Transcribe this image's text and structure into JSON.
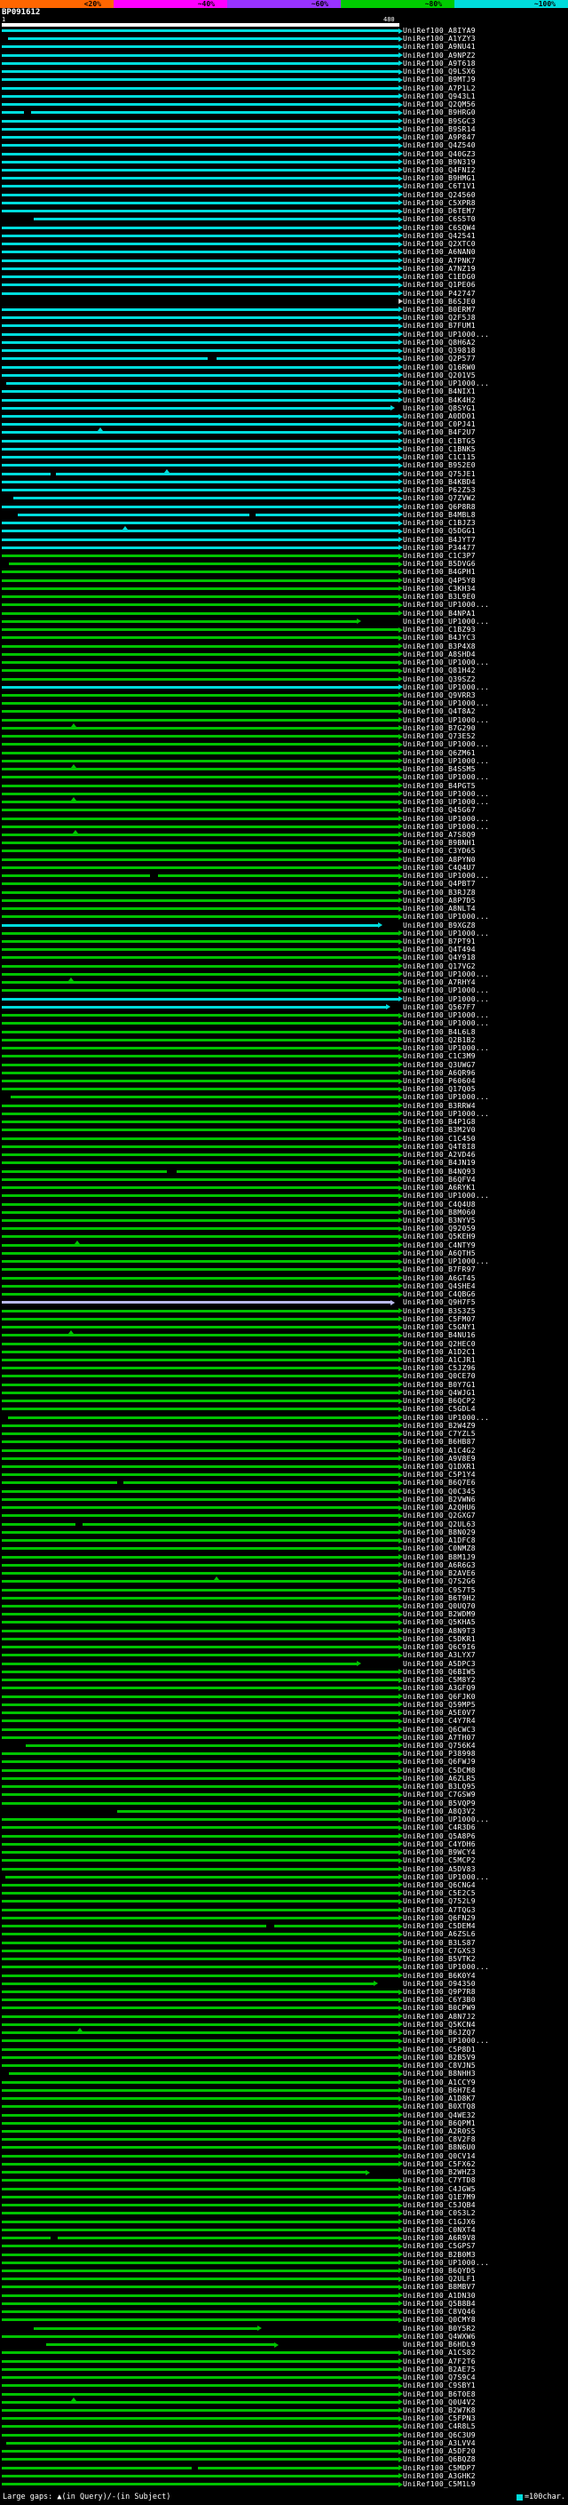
{
  "scale": {
    "segments": [
      {
        "label": "<20%",
        "color": "#ff6600"
      },
      {
        "label": "~40%",
        "color": "#ff00ff"
      },
      {
        "label": "~60%",
        "color": "#9933ff"
      },
      {
        "label": "~80%",
        "color": "#00cc00"
      },
      {
        "label": "~100%",
        "color": "#00dcdc"
      }
    ]
  },
  "query": {
    "name": "BP091612",
    "ruler_start": "1",
    "ruler_end": "480",
    "length": 480,
    "bar_color": "#ffffff"
  },
  "legend": {
    "gaps_text": "Large gaps: ▲(in Query)/-(in Subject)",
    "unit_text": "=100char.",
    "unit_color": "#00dcdc"
  },
  "colors": {
    "c": "#00dcdc",
    "g": "#00c300",
    "k": "#000000",
    "p": "#b9b9ea"
  },
  "label_prefix": "UniRef100_",
  "chart_data": {
    "type": "bar",
    "orientation": "horizontal",
    "title": "BP091612",
    "x_range": [
      1,
      480
    ],
    "color_meaning": "c=~100% identity (cyan), g=~80% (green), k=<20% (black), p=~60% (pale)",
    "rows": [
      {
        "l": "A8IYA9",
        "c": "c"
      },
      {
        "l": "A1YZY3",
        "c": "c",
        "s": 8
      },
      {
        "l": "A9NU41",
        "c": "c"
      },
      {
        "l": "A9NPZ2",
        "c": "c"
      },
      {
        "l": "A9T618",
        "c": "c"
      },
      {
        "l": "Q9LSX6",
        "c": "c"
      },
      {
        "l": "B9MTJ9",
        "c": "c"
      },
      {
        "l": "A7P1L2",
        "c": "c"
      },
      {
        "l": "Q943L1",
        "c": "c"
      },
      {
        "l": "Q2QM56",
        "c": "c"
      },
      {
        "l": "B9HRG0",
        "c": "c",
        "g": [
          [
            28,
            8
          ]
        ]
      },
      {
        "l": "B9SGC3",
        "c": "c"
      },
      {
        "l": "B9SR14",
        "c": "c"
      },
      {
        "l": "A9P847",
        "c": "c"
      },
      {
        "l": "Q4Z540",
        "c": "c"
      },
      {
        "l": "Q40GZ3",
        "c": "c"
      },
      {
        "l": "B9N319",
        "c": "c"
      },
      {
        "l": "Q4FNI2",
        "c": "c"
      },
      {
        "l": "B9HMG1",
        "c": "c"
      },
      {
        "l": "C6T1V1",
        "c": "c"
      },
      {
        "l": "Q24560",
        "c": "c"
      },
      {
        "l": "C5XPR8",
        "c": "c"
      },
      {
        "l": "D6TEM7",
        "c": "c"
      },
      {
        "l": "C6S5T0",
        "c": "c",
        "s": 40
      },
      {
        "l": "C6SQW4",
        "c": "c"
      },
      {
        "l": "Q42541",
        "c": "c"
      },
      {
        "l": "Q2XTC0",
        "c": "c"
      },
      {
        "l": "A6NAN0",
        "c": "c"
      },
      {
        "l": "A7PNK7",
        "c": "c"
      },
      {
        "l": "A7NZ19",
        "c": "c"
      },
      {
        "l": "C1EDG0",
        "c": "c"
      },
      {
        "l": "Q1PE06",
        "c": "c"
      },
      {
        "l": "P42747",
        "c": "c"
      },
      {
        "l": "B6SJE0",
        "c": "k"
      },
      {
        "l": "B0ERM7",
        "c": "c"
      },
      {
        "l": "Q2F5J8",
        "c": "c"
      },
      {
        "l": "B7FUM1",
        "c": "c"
      },
      {
        "l": "UP1000...",
        "c": "c"
      },
      {
        "l": "Q8H6A2",
        "c": "c"
      },
      {
        "l": "Q39818",
        "c": "c"
      },
      {
        "l": "Q2P577",
        "c": "c",
        "g": [
          [
            250,
            10
          ]
        ]
      },
      {
        "l": "Q16RW0",
        "c": "c"
      },
      {
        "l": "Q201V5",
        "c": "c"
      },
      {
        "l": "UP1000...",
        "c": "c",
        "s": 6
      },
      {
        "l": "B4NIX1",
        "c": "c"
      },
      {
        "l": "B4K4H2",
        "c": "c"
      },
      {
        "l": "Q8SYG1",
        "c": "c",
        "e": 470
      },
      {
        "l": "A0DD01",
        "c": "c"
      },
      {
        "l": "C0PJ41",
        "c": "c"
      },
      {
        "l": "B4F2U7",
        "c": "c",
        "t": [
          120
        ]
      },
      {
        "l": "C1BTG5",
        "c": "c"
      },
      {
        "l": "C1BNK5",
        "c": "c"
      },
      {
        "l": "C1C115",
        "c": "c"
      },
      {
        "l": "B952E0",
        "c": "c"
      },
      {
        "l": "Q75JE1",
        "c": "c",
        "g": [
          [
            60,
            6
          ]
        ],
        "t": [
          200
        ]
      },
      {
        "l": "B4KBD4",
        "c": "c"
      },
      {
        "l": "P62Z53",
        "c": "c"
      },
      {
        "l": "Q7ZVW2",
        "c": "c",
        "s": 15
      },
      {
        "l": "Q6P8R8",
        "c": "c"
      },
      {
        "l": "B4MBL8",
        "c": "c",
        "s": 20,
        "g": [
          [
            300,
            8
          ]
        ]
      },
      {
        "l": "C1BJZ3",
        "c": "c"
      },
      {
        "l": "Q5DGG1",
        "c": "c",
        "t": [
          150
        ]
      },
      {
        "l": "B4JYT7",
        "c": "c"
      },
      {
        "l": "P34477",
        "c": "c"
      },
      {
        "l": "C1C3P7"
      },
      {
        "l": "B5DVG6",
        "s": 10
      },
      {
        "l": "B4GPH1"
      },
      {
        "l": "Q4P5Y8"
      },
      {
        "l": "C3KH34"
      },
      {
        "l": "B3L9E0"
      },
      {
        "l": "UP1000..."
      },
      {
        "l": "B4NPA1"
      },
      {
        "l": "UP1000...",
        "e": 430
      },
      {
        "l": "C1BZ93"
      },
      {
        "l": "B4JYC3"
      },
      {
        "l": "B3P4X8"
      },
      {
        "l": "A8SHD4"
      },
      {
        "l": "UP1000..."
      },
      {
        "l": "Q81H42"
      },
      {
        "l": "Q39SZ2"
      },
      {
        "l": "UP1000...",
        "c": "c"
      },
      {
        "l": "Q9VRR3"
      },
      {
        "l": "UP1000..."
      },
      {
        "l": "Q4T8A2"
      },
      {
        "l": "UP1000..."
      },
      {
        "l": "B7G290",
        "t": [
          88
        ]
      },
      {
        "l": "Q73E52"
      },
      {
        "l": "UP1000..."
      },
      {
        "l": "Q6ZM61"
      },
      {
        "l": "UP1000..."
      },
      {
        "l": "B4SSM5",
        "t": [
          88
        ]
      },
      {
        "l": "UP1000..."
      },
      {
        "l": "B4PGT5"
      },
      {
        "l": "UP1000..."
      },
      {
        "l": "UP1000...",
        "t": [
          88
        ]
      },
      {
        "l": "Q45G67"
      },
      {
        "l": "UP1000..."
      },
      {
        "l": "UP1000..."
      },
      {
        "l": "A7S8Q9",
        "t": [
          90
        ]
      },
      {
        "l": "B9BNH1"
      },
      {
        "l": "C3YD65"
      },
      {
        "l": "A8PYN0"
      },
      {
        "l": "C4Q4U7"
      },
      {
        "l": "UP1000...",
        "g": [
          [
            180,
            10
          ]
        ]
      },
      {
        "l": "Q4PBT7"
      },
      {
        "l": "B3RJZ8"
      },
      {
        "l": "A8P7D5"
      },
      {
        "l": "A8NLT4"
      },
      {
        "l": "UP1000..."
      },
      {
        "l": "B9XGZ8",
        "c": "c",
        "e": 455
      },
      {
        "l": "UP1000..."
      },
      {
        "l": "B7PT91"
      },
      {
        "l": "Q4T494"
      },
      {
        "l": "Q4Y918"
      },
      {
        "l": "Q17VG2"
      },
      {
        "l": "UP1000..."
      },
      {
        "l": "A7RHY4",
        "t": [
          85
        ]
      },
      {
        "l": "UP1000..."
      },
      {
        "l": "UP1000...",
        "c": "c"
      },
      {
        "l": "Q567F7",
        "c": "c",
        "e": 465
      },
      {
        "l": "UP1000..."
      },
      {
        "l": "UP1000..."
      },
      {
        "l": "B4L6L8"
      },
      {
        "l": "Q2B1B2"
      },
      {
        "l": "UP1000..."
      },
      {
        "l": "C1C3M9"
      },
      {
        "l": "Q3UWG7"
      },
      {
        "l": "A6QR96"
      },
      {
        "l": "P60604"
      },
      {
        "l": "Q17Q05"
      },
      {
        "l": "UP1000...",
        "s": 12
      },
      {
        "l": "B3RRW4"
      },
      {
        "l": "UP1000..."
      },
      {
        "l": "B4P1G8"
      },
      {
        "l": "B3M2V0"
      },
      {
        "l": "C1C450"
      },
      {
        "l": "Q4T8I8"
      },
      {
        "l": "A2VD46"
      },
      {
        "l": "B4JN19"
      },
      {
        "l": "B4NQ93",
        "g": [
          [
            200,
            12
          ]
        ]
      },
      {
        "l": "B6QFV4"
      },
      {
        "l": "A6RYK1"
      },
      {
        "l": "UP1000..."
      },
      {
        "l": "C4Q4U8"
      },
      {
        "l": "B8M060"
      },
      {
        "l": "B3NYV5"
      },
      {
        "l": "Q92059"
      },
      {
        "l": "Q5KEH9"
      },
      {
        "l": "C4NTY9",
        "t": [
          92
        ]
      },
      {
        "l": "A6QTH5"
      },
      {
        "l": "UP1000..."
      },
      {
        "l": "B7FR97"
      },
      {
        "l": "A6GT45"
      },
      {
        "l": "Q4SHE4"
      },
      {
        "l": "C4QBG6"
      },
      {
        "l": "Q9H7F5",
        "c": "p",
        "e": 470
      },
      {
        "l": "B3S3Z5"
      },
      {
        "l": "C5FM07"
      },
      {
        "l": "C5GNY1"
      },
      {
        "l": "B4NU16",
        "t": [
          85
        ]
      },
      {
        "l": "Q2HEC0"
      },
      {
        "l": "A1D2C1"
      },
      {
        "l": "A1CJR1"
      },
      {
        "l": "C5JZ96"
      },
      {
        "l": "Q0CE70"
      },
      {
        "l": "B0Y7G1"
      },
      {
        "l": "Q4WJG1"
      },
      {
        "l": "B6QCP2"
      },
      {
        "l": "C5GDL4"
      },
      {
        "l": "UP1000...",
        "s": 8
      },
      {
        "l": "B2W4Z9"
      },
      {
        "l": "C7YZL5"
      },
      {
        "l": "B6HB87"
      },
      {
        "l": "A1C4G2"
      },
      {
        "l": "A9V8E9"
      },
      {
        "l": "Q1DXR1"
      },
      {
        "l": "C5P1Y4"
      },
      {
        "l": "B6Q7E6",
        "g": [
          [
            140,
            8
          ]
        ]
      },
      {
        "l": "Q0C345"
      },
      {
        "l": "B2VWN6"
      },
      {
        "l": "A2QHU6"
      },
      {
        "l": "Q2GXG7"
      },
      {
        "l": "Q2UL63",
        "g": [
          [
            90,
            8
          ]
        ]
      },
      {
        "l": "B8N029"
      },
      {
        "l": "A1DFC8"
      },
      {
        "l": "C0NMZ8"
      },
      {
        "l": "B8M1J9"
      },
      {
        "l": "A6R6G3"
      },
      {
        "l": "B2AVE6"
      },
      {
        "l": "Q7S2G6",
        "t": [
          260
        ]
      },
      {
        "l": "C9S7T5"
      },
      {
        "l": "B6T9H2"
      },
      {
        "l": "Q0UQ70"
      },
      {
        "l": "B2WDM9"
      },
      {
        "l": "Q5KHA5"
      },
      {
        "l": "A8N9T3"
      },
      {
        "l": "C5DKR1"
      },
      {
        "l": "Q6C9I6"
      },
      {
        "l": "A3LYX7"
      },
      {
        "l": "A5DPC3",
        "e": 430
      },
      {
        "l": "Q6BIW5"
      },
      {
        "l": "C5M8Y2"
      },
      {
        "l": "A3GFQ9"
      },
      {
        "l": "Q6FJK0"
      },
      {
        "l": "Q59MP5"
      },
      {
        "l": "A5E0V7"
      },
      {
        "l": "C4Y7R4"
      },
      {
        "l": "Q6CWC3"
      },
      {
        "l": "A7TH07"
      },
      {
        "l": "Q756K4",
        "s": 30
      },
      {
        "l": "P38998"
      },
      {
        "l": "Q6FWJ9"
      },
      {
        "l": "C5DCM8"
      },
      {
        "l": "A6ZLR5"
      },
      {
        "l": "B3LQ95"
      },
      {
        "l": "C7GSW9"
      },
      {
        "l": "B5VQP9"
      },
      {
        "l": "A8Q3V2",
        "s": 140
      },
      {
        "l": "UP1000..."
      },
      {
        "l": "C4R3D6"
      },
      {
        "l": "Q5A8P6"
      },
      {
        "l": "C4YDH6"
      },
      {
        "l": "B9WCY4"
      },
      {
        "l": "C5MCP2"
      },
      {
        "l": "A5DV83"
      },
      {
        "l": "UP1000...",
        "s": 5
      },
      {
        "l": "Q6CNG4"
      },
      {
        "l": "C5E2C5"
      },
      {
        "l": "Q752L9"
      },
      {
        "l": "A7TQG3"
      },
      {
        "l": "Q6FN29"
      },
      {
        "l": "C5DEM4",
        "g": [
          [
            320,
            10
          ]
        ]
      },
      {
        "l": "A6ZSL6"
      },
      {
        "l": "B3LS87"
      },
      {
        "l": "C7GXS3"
      },
      {
        "l": "B5VTK2"
      },
      {
        "l": "UP1000..."
      },
      {
        "l": "B6K0Y4"
      },
      {
        "l": "O94350",
        "e": 450
      },
      {
        "l": "Q9P7R8"
      },
      {
        "l": "C6Y3B0"
      },
      {
        "l": "B0CPW9"
      },
      {
        "l": "A8N7J2"
      },
      {
        "l": "Q5KCN4"
      },
      {
        "l": "B6JZQ7",
        "t": [
          95
        ]
      },
      {
        "l": "UP1000..."
      },
      {
        "l": "C5P8D1"
      },
      {
        "l": "B2B5V9"
      },
      {
        "l": "C8VJN5"
      },
      {
        "l": "B8NHH3",
        "s": 10
      },
      {
        "l": "A1CCY9"
      },
      {
        "l": "B6H7E4"
      },
      {
        "l": "A1D8K7"
      },
      {
        "l": "B0XTQ8"
      },
      {
        "l": "Q4WE32"
      },
      {
        "l": "B6QPM1"
      },
      {
        "l": "A2R0S5"
      },
      {
        "l": "C8V2F8"
      },
      {
        "l": "B8N6U0"
      },
      {
        "l": "Q0CV14"
      },
      {
        "l": "C5FX62"
      },
      {
        "l": "B2WHZ3",
        "e": 440
      },
      {
        "l": "C7YTD8"
      },
      {
        "l": "C4JGW5"
      },
      {
        "l": "Q1E7M9"
      },
      {
        "l": "C5JQB4"
      },
      {
        "l": "C0S3L2"
      },
      {
        "l": "C1GJX6"
      },
      {
        "l": "C0NXT4"
      },
      {
        "l": "A6R9V8",
        "g": [
          [
            60,
            8
          ]
        ]
      },
      {
        "l": "C5GPS7"
      },
      {
        "l": "B2B0M3"
      },
      {
        "l": "UP1000..."
      },
      {
        "l": "B6QYD5"
      },
      {
        "l": "Q2ULF1"
      },
      {
        "l": "B8MBV7"
      },
      {
        "l": "A1DN30"
      },
      {
        "l": "Q5B8B4"
      },
      {
        "l": "C8VQ46"
      },
      {
        "l": "Q0CMY8"
      },
      {
        "l": "B0Y5R2",
        "s": 40,
        "e": 310
      },
      {
        "l": "Q4WXW6"
      },
      {
        "l": "B6HDL9",
        "s": 55,
        "e": 330
      },
      {
        "l": "A1CS82"
      },
      {
        "l": "A7F2T6"
      },
      {
        "l": "B2AE75"
      },
      {
        "l": "Q7S9C4"
      },
      {
        "l": "C9SBY1"
      },
      {
        "l": "B6T0E8"
      },
      {
        "l": "Q0U4V2",
        "t": [
          88
        ]
      },
      {
        "l": "B2W7K8"
      },
      {
        "l": "C5FPN3"
      },
      {
        "l": "C4R8L5"
      },
      {
        "l": "Q6C3U9"
      },
      {
        "l": "A3LVV4",
        "s": 6
      },
      {
        "l": "A5DF20"
      },
      {
        "l": "Q6BQZ8"
      },
      {
        "l": "C5MDP7",
        "g": [
          [
            230,
            8
          ]
        ]
      },
      {
        "l": "A3GHK2"
      },
      {
        "l": "C5M1L9"
      }
    ]
  }
}
